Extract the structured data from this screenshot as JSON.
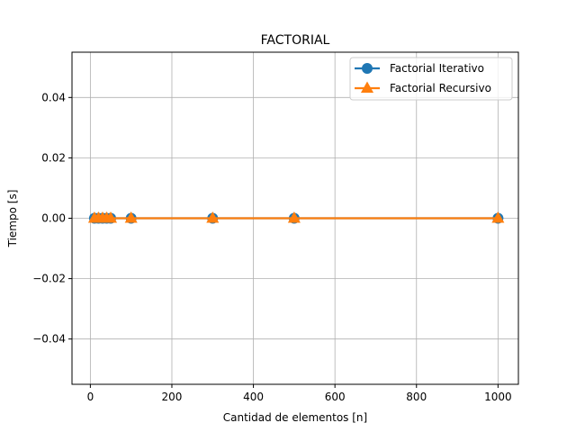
{
  "chart_data": {
    "type": "line",
    "title": "FACTORIAL",
    "xlabel": "Cantidad de elementos [n]",
    "ylabel": "Tiempo [s]",
    "xlim": [
      -45,
      1050
    ],
    "ylim": [
      -0.055,
      0.055
    ],
    "xticks": [
      0,
      200,
      400,
      600,
      800,
      1000
    ],
    "xtick_labels": [
      "0",
      "200",
      "400",
      "600",
      "800",
      "1000"
    ],
    "yticks": [
      -0.04,
      -0.02,
      0.0,
      0.02,
      0.04
    ],
    "ytick_labels": [
      "−0.04",
      "−0.02",
      "0.00",
      "0.02",
      "0.04"
    ],
    "grid": true,
    "legend_position": "top-right",
    "x": [
      10,
      20,
      30,
      40,
      50,
      100,
      300,
      500,
      1000
    ],
    "series": [
      {
        "name": "Factorial Iterativo",
        "color": "#1f77b4",
        "marker": "circle",
        "values": [
          0,
          0,
          0,
          0,
          0,
          0,
          0,
          0,
          0
        ]
      },
      {
        "name": "Factorial Recursivo",
        "color": "#ff7f0e",
        "marker": "triangle",
        "values": [
          0,
          0,
          0,
          0,
          0,
          0,
          0,
          0,
          0
        ]
      }
    ]
  }
}
